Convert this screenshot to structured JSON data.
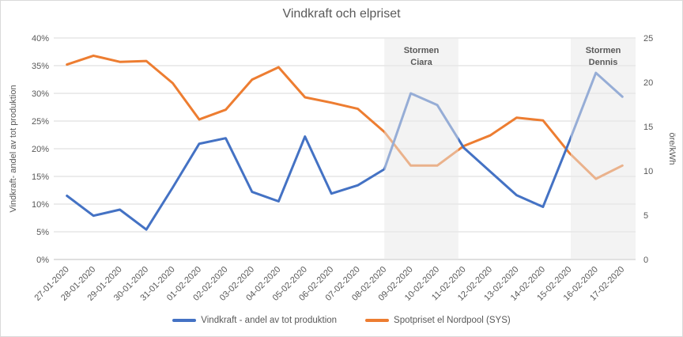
{
  "title": "Vindkraft och elpriset",
  "chart_data": {
    "type": "line",
    "title": "Vindkraft och elpriset",
    "categories": [
      "27-01-2020",
      "28-01-2020",
      "29-01-2020",
      "30-01-2020",
      "31-01-2020",
      "01-02-2020",
      "02-02-2020",
      "03-02-2020",
      "04-02-2020",
      "05-02-2020",
      "06-02-2020",
      "07-02-2020",
      "08-02-2020",
      "09-02-2020",
      "10-02-2020",
      "11-02-2020",
      "12-02-2020",
      "13-02-2020",
      "14-02-2020",
      "15-02-2020",
      "16-02-2020",
      "17-02-2020"
    ],
    "series": [
      {
        "name": "Vindkraft - andel av tot produktion",
        "axis": "left",
        "color": "#4472C4",
        "values": [
          11.5,
          7.9,
          9.0,
          5.4,
          13.0,
          20.9,
          21.9,
          12.2,
          10.5,
          22.2,
          11.9,
          13.4,
          16.3,
          30.0,
          27.9,
          20.2,
          15.9,
          11.6,
          9.5,
          21.4,
          33.7,
          29.4
        ]
      },
      {
        "name": "Spotpriset el Nordpool (SYS)",
        "axis": "right",
        "color": "#ED7D31",
        "values": [
          22.0,
          23.0,
          22.3,
          22.4,
          19.9,
          15.8,
          16.9,
          20.3,
          21.7,
          18.3,
          17.7,
          17.0,
          14.4,
          10.6,
          10.6,
          12.8,
          14.0,
          16.0,
          15.7,
          12.0,
          9.1,
          10.6
        ]
      }
    ],
    "left_axis": {
      "title": "Vindkraft- andel av tot produktion",
      "min": 0,
      "max": 40,
      "unit": "%",
      "ticks": [
        "0%",
        "5%",
        "10%",
        "15%",
        "20%",
        "25%",
        "30%",
        "35%",
        "40%"
      ]
    },
    "right_axis": {
      "title": "öre/kWh",
      "min": 0,
      "max": 25,
      "ticks": [
        "0",
        "5",
        "10",
        "15",
        "20",
        "25"
      ]
    },
    "annotations": [
      {
        "line1": "Stormen",
        "line2": "Ciara",
        "from_index": 12.0,
        "to_index": 14.8
      },
      {
        "line1": "Stormen",
        "line2": "Dennis",
        "from_index": 19.05,
        "to_index": 21.5
      }
    ],
    "legend_position": "bottom",
    "grid": true,
    "colors": {
      "text": "#595959",
      "gridline": "#D9D9D9",
      "axis_line": "#BFBFBF",
      "band_fill": "#E7E7E7",
      "band_opacity": 0.5
    }
  }
}
